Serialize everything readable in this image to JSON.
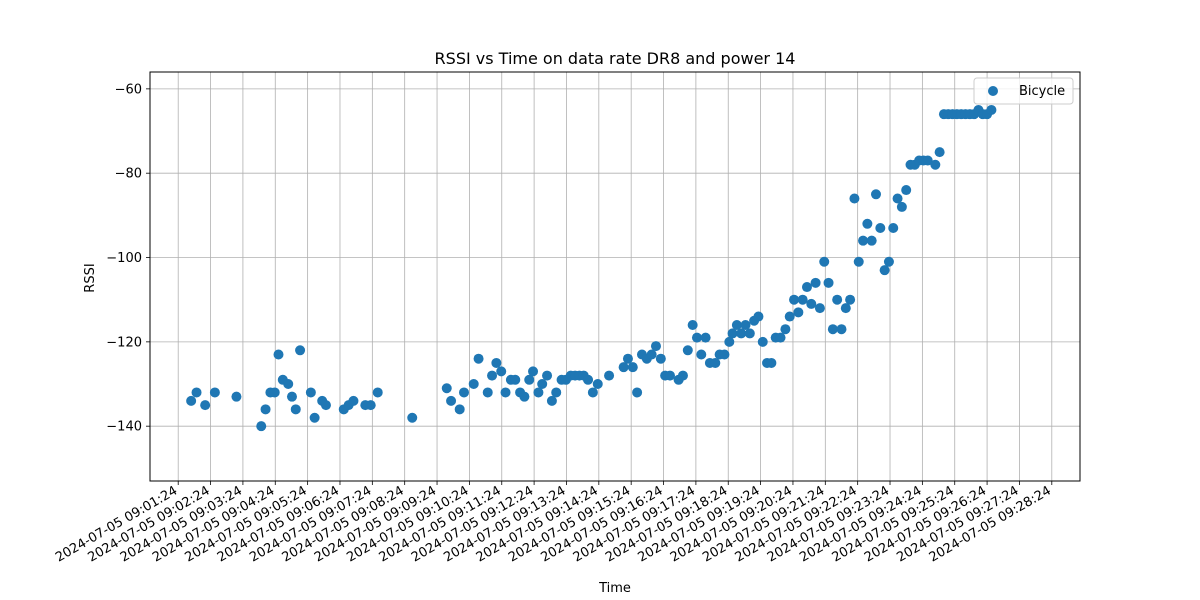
{
  "chart_data": {
    "type": "scatter",
    "title": "RSSI vs Time on data rate DR8 and power 14",
    "xlabel": "Time",
    "ylabel": "RSSI",
    "ylim": [
      -153,
      -56
    ],
    "yticks": [
      -60,
      -80,
      -100,
      -120,
      -140
    ],
    "ytick_labels": [
      "−60",
      "−80",
      "−100",
      "−120",
      "−140"
    ],
    "xlim": [
      "2024-07-05 09:01:24",
      "2024-07-05 09:28:24"
    ],
    "xticks": [
      "2024-07-05 09:01:24",
      "2024-07-05 09:02:24",
      "2024-07-05 09:03:24",
      "2024-07-05 09:04:24",
      "2024-07-05 09:05:24",
      "2024-07-05 09:06:24",
      "2024-07-05 09:07:24",
      "2024-07-05 09:08:24",
      "2024-07-05 09:09:24",
      "2024-07-05 09:10:24",
      "2024-07-05 09:11:24",
      "2024-07-05 09:12:24",
      "2024-07-05 09:13:24",
      "2024-07-05 09:14:24",
      "2024-07-05 09:15:24",
      "2024-07-05 09:16:24",
      "2024-07-05 09:17:24",
      "2024-07-05 09:18:24",
      "2024-07-05 09:19:24",
      "2024-07-05 09:20:24",
      "2024-07-05 09:21:24",
      "2024-07-05 09:22:24",
      "2024-07-05 09:23:24",
      "2024-07-05 09:24:24",
      "2024-07-05 09:25:24",
      "2024-07-05 09:26:24",
      "2024-07-05 09:27:24",
      "2024-07-05 09:28:24"
    ],
    "grid": true,
    "legend": "top-right",
    "color": "#1f77b4",
    "series": [
      {
        "name": "Bicycle",
        "points": [
          [
            "2024-07-05 09:01:48",
            -134
          ],
          [
            "2024-07-05 09:01:58",
            -132
          ],
          [
            "2024-07-05 09:02:14",
            -135
          ],
          [
            "2024-07-05 09:02:32",
            -132
          ],
          [
            "2024-07-05 09:03:12",
            -133
          ],
          [
            "2024-07-05 09:03:58",
            -140
          ],
          [
            "2024-07-05 09:04:06",
            -136
          ],
          [
            "2024-07-05 09:04:15",
            -132
          ],
          [
            "2024-07-05 09:04:23",
            -132
          ],
          [
            "2024-07-05 09:04:30",
            -123
          ],
          [
            "2024-07-05 09:04:38",
            -129
          ],
          [
            "2024-07-05 09:04:48",
            -130
          ],
          [
            "2024-07-05 09:04:55",
            -133
          ],
          [
            "2024-07-05 09:05:02",
            -136
          ],
          [
            "2024-07-05 09:05:10",
            -122
          ],
          [
            "2024-07-05 09:05:30",
            -132
          ],
          [
            "2024-07-05 09:05:37",
            -138
          ],
          [
            "2024-07-05 09:05:51",
            -134
          ],
          [
            "2024-07-05 09:05:58",
            -135
          ],
          [
            "2024-07-05 09:06:31",
            -136
          ],
          [
            "2024-07-05 09:06:40",
            -135
          ],
          [
            "2024-07-05 09:06:49",
            -134
          ],
          [
            "2024-07-05 09:07:11",
            -135
          ],
          [
            "2024-07-05 09:07:21",
            -135
          ],
          [
            "2024-07-05 09:07:34",
            -132
          ],
          [
            "2024-07-05 09:08:38",
            -138
          ],
          [
            "2024-07-05 09:09:42",
            -131
          ],
          [
            "2024-07-05 09:09:50",
            -134
          ],
          [
            "2024-07-05 09:10:06",
            -136
          ],
          [
            "2024-07-05 09:10:14",
            -132
          ],
          [
            "2024-07-05 09:10:32",
            -130
          ],
          [
            "2024-07-05 09:10:41",
            -124
          ],
          [
            "2024-07-05 09:10:58",
            -132
          ],
          [
            "2024-07-05 09:11:06",
            -128
          ],
          [
            "2024-07-05 09:11:14",
            -125
          ],
          [
            "2024-07-05 09:11:23",
            -127
          ],
          [
            "2024-07-05 09:11:31",
            -132
          ],
          [
            "2024-07-05 09:11:41",
            -129
          ],
          [
            "2024-07-05 09:11:49",
            -129
          ],
          [
            "2024-07-05 09:11:58",
            -132
          ],
          [
            "2024-07-05 09:12:06",
            -133
          ],
          [
            "2024-07-05 09:12:15",
            -129
          ],
          [
            "2024-07-05 09:12:22",
            -127
          ],
          [
            "2024-07-05 09:12:32",
            -132
          ],
          [
            "2024-07-05 09:12:39",
            -130
          ],
          [
            "2024-07-05 09:12:48",
            -128
          ],
          [
            "2024-07-05 09:12:57",
            -134
          ],
          [
            "2024-07-05 09:13:05",
            -132
          ],
          [
            "2024-07-05 09:13:15",
            -129
          ],
          [
            "2024-07-05 09:13:23",
            -129
          ],
          [
            "2024-07-05 09:13:32",
            -128
          ],
          [
            "2024-07-05 09:13:40",
            -128
          ],
          [
            "2024-07-05 09:13:48",
            -128
          ],
          [
            "2024-07-05 09:13:56",
            -128
          ],
          [
            "2024-07-05 09:14:04",
            -129
          ],
          [
            "2024-07-05 09:14:13",
            -132
          ],
          [
            "2024-07-05 09:14:22",
            -130
          ],
          [
            "2024-07-05 09:14:43",
            -128
          ],
          [
            "2024-07-05 09:15:10",
            -126
          ],
          [
            "2024-07-05 09:15:18",
            -124
          ],
          [
            "2024-07-05 09:15:27",
            -126
          ],
          [
            "2024-07-05 09:15:35",
            -132
          ],
          [
            "2024-07-05 09:15:44",
            -123
          ],
          [
            "2024-07-05 09:15:53",
            -124
          ],
          [
            "2024-07-05 09:16:02",
            -123
          ],
          [
            "2024-07-05 09:16:10",
            -121
          ],
          [
            "2024-07-05 09:16:19",
            -124
          ],
          [
            "2024-07-05 09:16:27",
            -128
          ],
          [
            "2024-07-05 09:16:36",
            -128
          ],
          [
            "2024-07-05 09:16:52",
            -129
          ],
          [
            "2024-07-05 09:17:00",
            -128
          ],
          [
            "2024-07-05 09:17:09",
            -122
          ],
          [
            "2024-07-05 09:17:18",
            -116
          ],
          [
            "2024-07-05 09:17:26",
            -119
          ],
          [
            "2024-07-05 09:17:34",
            -123
          ],
          [
            "2024-07-05 09:17:42",
            -119
          ],
          [
            "2024-07-05 09:17:50",
            -125
          ],
          [
            "2024-07-05 09:18:00",
            -125
          ],
          [
            "2024-07-05 09:18:08",
            -123
          ],
          [
            "2024-07-05 09:18:17",
            -123
          ],
          [
            "2024-07-05 09:18:26",
            -120
          ],
          [
            "2024-07-05 09:18:32",
            -118
          ],
          [
            "2024-07-05 09:18:40",
            -116
          ],
          [
            "2024-07-05 09:18:48",
            -118
          ],
          [
            "2024-07-05 09:18:56",
            -116
          ],
          [
            "2024-07-05 09:19:04",
            -118
          ],
          [
            "2024-07-05 09:19:12",
            -115
          ],
          [
            "2024-07-05 09:19:20",
            -114
          ],
          [
            "2024-07-05 09:19:28",
            -120
          ],
          [
            "2024-07-05 09:19:36",
            -125
          ],
          [
            "2024-07-05 09:19:44",
            -125
          ],
          [
            "2024-07-05 09:19:52",
            -119
          ],
          [
            "2024-07-05 09:20:01",
            -119
          ],
          [
            "2024-07-05 09:20:10",
            -117
          ],
          [
            "2024-07-05 09:20:18",
            -114
          ],
          [
            "2024-07-05 09:20:26",
            -110
          ],
          [
            "2024-07-05 09:20:34",
            -113
          ],
          [
            "2024-07-05 09:20:42",
            -110
          ],
          [
            "2024-07-05 09:20:50",
            -107
          ],
          [
            "2024-07-05 09:20:58",
            -111
          ],
          [
            "2024-07-05 09:21:06",
            -106
          ],
          [
            "2024-07-05 09:21:14",
            -112
          ],
          [
            "2024-07-05 09:21:22",
            -101
          ],
          [
            "2024-07-05 09:21:30",
            -106
          ],
          [
            "2024-07-05 09:21:38",
            -117
          ],
          [
            "2024-07-05 09:21:46",
            -110
          ],
          [
            "2024-07-05 09:21:54",
            -117
          ],
          [
            "2024-07-05 09:22:02",
            -112
          ],
          [
            "2024-07-05 09:22:10",
            -110
          ],
          [
            "2024-07-05 09:22:18",
            -86
          ],
          [
            "2024-07-05 09:22:26",
            -101
          ],
          [
            "2024-07-05 09:22:34",
            -96
          ],
          [
            "2024-07-05 09:22:42",
            -92
          ],
          [
            "2024-07-05 09:22:50",
            -96
          ],
          [
            "2024-07-05 09:22:58",
            -85
          ],
          [
            "2024-07-05 09:23:06",
            -93
          ],
          [
            "2024-07-05 09:23:14",
            -103
          ],
          [
            "2024-07-05 09:23:22",
            -101
          ],
          [
            "2024-07-05 09:23:30",
            -93
          ],
          [
            "2024-07-05 09:23:38",
            -86
          ],
          [
            "2024-07-05 09:23:46",
            -88
          ],
          [
            "2024-07-05 09:23:54",
            -84
          ],
          [
            "2024-07-05 09:24:02",
            -78
          ],
          [
            "2024-07-05 09:24:10",
            -78
          ],
          [
            "2024-07-05 09:24:18",
            -77
          ],
          [
            "2024-07-05 09:24:26",
            -77
          ],
          [
            "2024-07-05 09:24:34",
            -77
          ],
          [
            "2024-07-05 09:24:48",
            -78
          ],
          [
            "2024-07-05 09:24:56",
            -75
          ],
          [
            "2024-07-05 09:25:04",
            -66
          ],
          [
            "2024-07-05 09:25:12",
            -66
          ],
          [
            "2024-07-05 09:25:20",
            -66
          ],
          [
            "2024-07-05 09:25:28",
            -66
          ],
          [
            "2024-07-05 09:25:36",
            -66
          ],
          [
            "2024-07-05 09:25:44",
            -66
          ],
          [
            "2024-07-05 09:25:52",
            -66
          ],
          [
            "2024-07-05 09:26:00",
            -66
          ],
          [
            "2024-07-05 09:26:08",
            -65
          ],
          [
            "2024-07-05 09:26:16",
            -66
          ],
          [
            "2024-07-05 09:26:24",
            -66
          ],
          [
            "2024-07-05 09:26:32",
            -65
          ]
        ]
      }
    ]
  }
}
